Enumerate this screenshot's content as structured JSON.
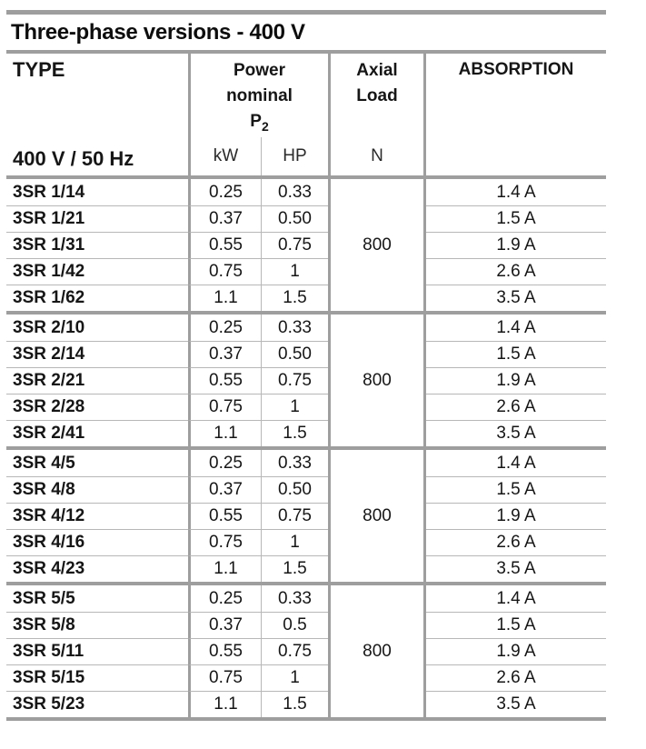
{
  "title": "Three-phase versions - 400 V",
  "colors": {
    "thick_line": "#9e9e9e",
    "thin_line": "#b7b7b7",
    "text": "#161616",
    "background": "#ffffff"
  },
  "header": {
    "type_label": "TYPE",
    "voltage_label": "400 V / 50 Hz",
    "power": {
      "line1": "Power",
      "line2": "nominal",
      "symbol": "P",
      "symbol_sub": "2"
    },
    "power_units": {
      "kw": "kW",
      "hp": "HP"
    },
    "axial": {
      "line1": "Axial",
      "line2": "Load",
      "unit": "N"
    },
    "absorption_label": "ABSORPTION"
  },
  "groups": [
    {
      "axial_load": "800",
      "rows": [
        {
          "type": "3SR 1/14",
          "kw": "0.25",
          "hp": "0.33",
          "absorption": "1.4 A"
        },
        {
          "type": "3SR 1/21",
          "kw": "0.37",
          "hp": "0.50",
          "absorption": "1.5 A"
        },
        {
          "type": "3SR 1/31",
          "kw": "0.55",
          "hp": "0.75",
          "absorption": "1.9 A"
        },
        {
          "type": "3SR 1/42",
          "kw": "0.75",
          "hp": "1",
          "absorption": "2.6 A"
        },
        {
          "type": "3SR 1/62",
          "kw": "1.1",
          "hp": "1.5",
          "absorption": "3.5 A"
        }
      ]
    },
    {
      "axial_load": "800",
      "rows": [
        {
          "type": "3SR 2/10",
          "kw": "0.25",
          "hp": "0.33",
          "absorption": "1.4 A"
        },
        {
          "type": "3SR 2/14",
          "kw": "0.37",
          "hp": "0.50",
          "absorption": "1.5 A"
        },
        {
          "type": "3SR 2/21",
          "kw": "0.55",
          "hp": "0.75",
          "absorption": "1.9 A"
        },
        {
          "type": "3SR 2/28",
          "kw": "0.75",
          "hp": "1",
          "absorption": "2.6 A"
        },
        {
          "type": "3SR 2/41",
          "kw": "1.1",
          "hp": "1.5",
          "absorption": "3.5 A"
        }
      ]
    },
    {
      "axial_load": "800",
      "rows": [
        {
          "type": "3SR 4/5",
          "kw": "0.25",
          "hp": "0.33",
          "absorption": "1.4 A"
        },
        {
          "type": "3SR 4/8",
          "kw": "0.37",
          "hp": "0.50",
          "absorption": "1.5 A"
        },
        {
          "type": "3SR 4/12",
          "kw": "0.55",
          "hp": "0.75",
          "absorption": "1.9 A"
        },
        {
          "type": "3SR 4/16",
          "kw": "0.75",
          "hp": "1",
          "absorption": "2.6 A"
        },
        {
          "type": "3SR 4/23",
          "kw": "1.1",
          "hp": "1.5",
          "absorption": "3.5 A"
        }
      ]
    },
    {
      "axial_load": "800",
      "rows": [
        {
          "type": "3SR 5/5",
          "kw": "0.25",
          "hp": "0.33",
          "absorption": "1.4 A"
        },
        {
          "type": "3SR 5/8",
          "kw": "0.37",
          "hp": "0.5",
          "absorption": "1.5 A"
        },
        {
          "type": "3SR 5/11",
          "kw": "0.55",
          "hp": "0.75",
          "absorption": "1.9 A"
        },
        {
          "type": "3SR 5/15",
          "kw": "0.75",
          "hp": "1",
          "absorption": "2.6 A"
        },
        {
          "type": "3SR 5/23",
          "kw": "1.1",
          "hp": "1.5",
          "absorption": "3.5 A"
        }
      ]
    }
  ]
}
